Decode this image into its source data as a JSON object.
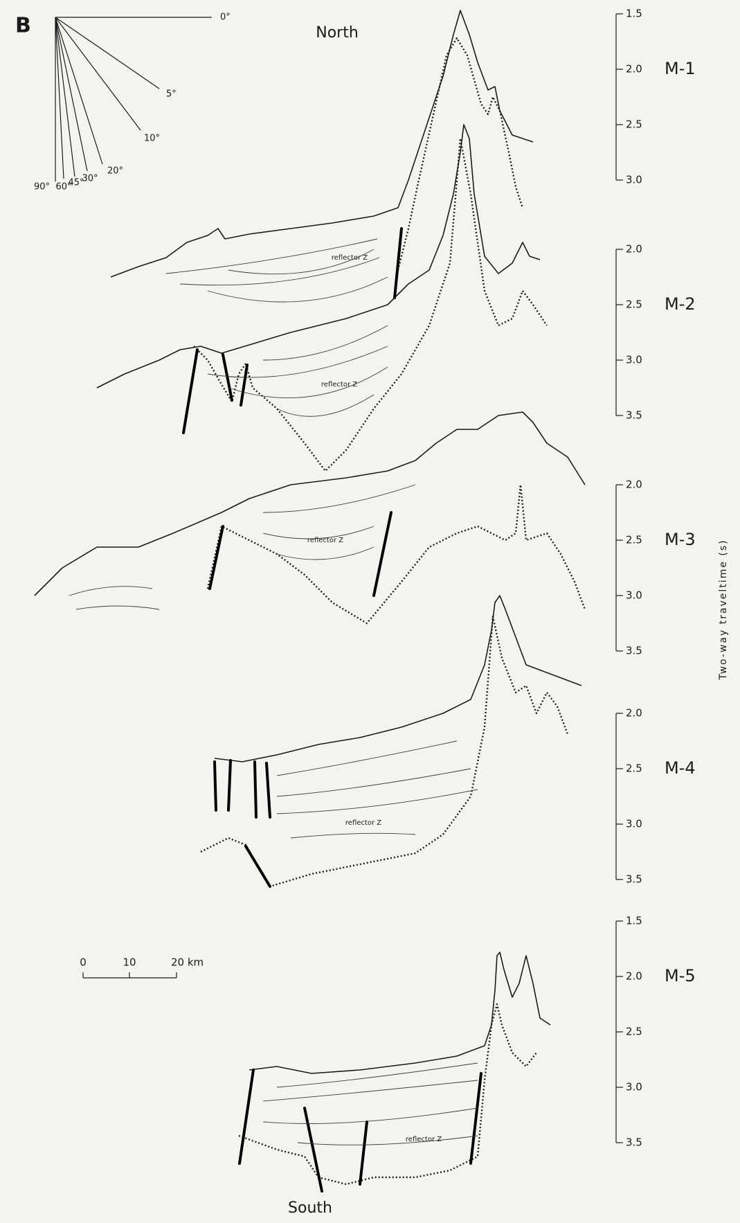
{
  "panel": "B",
  "north": "North",
  "south": "South",
  "angles": [
    "0°",
    "5°",
    "10°",
    "20°",
    "30°",
    "45°",
    "60°",
    "90°"
  ],
  "profiles": [
    {
      "label": "M-1",
      "ticks": [
        "1.5",
        "2.0",
        "2.5",
        "3.0"
      ],
      "annotation": "reflector Z"
    },
    {
      "label": "M-2",
      "ticks": [
        "2.0",
        "2.5",
        "3.0",
        "3.5"
      ],
      "annotation": "reflector Z"
    },
    {
      "label": "M-3",
      "ticks": [
        "2.0",
        "2.5",
        "3.0",
        "3.5"
      ],
      "annotation": "reflector Z"
    },
    {
      "label": "M-4",
      "ticks": [
        "2.0",
        "2.5",
        "3.0",
        "3.5"
      ],
      "annotation": "reflector Z"
    },
    {
      "label": "M-5",
      "ticks": [
        "1.5",
        "2.0",
        "2.5",
        "3.0",
        "3.5"
      ],
      "annotation": "reflector Z"
    }
  ],
  "scale_bar": [
    "0",
    "10",
    "20 km"
  ],
  "axis_title": "Two-way traveltime (s)"
}
